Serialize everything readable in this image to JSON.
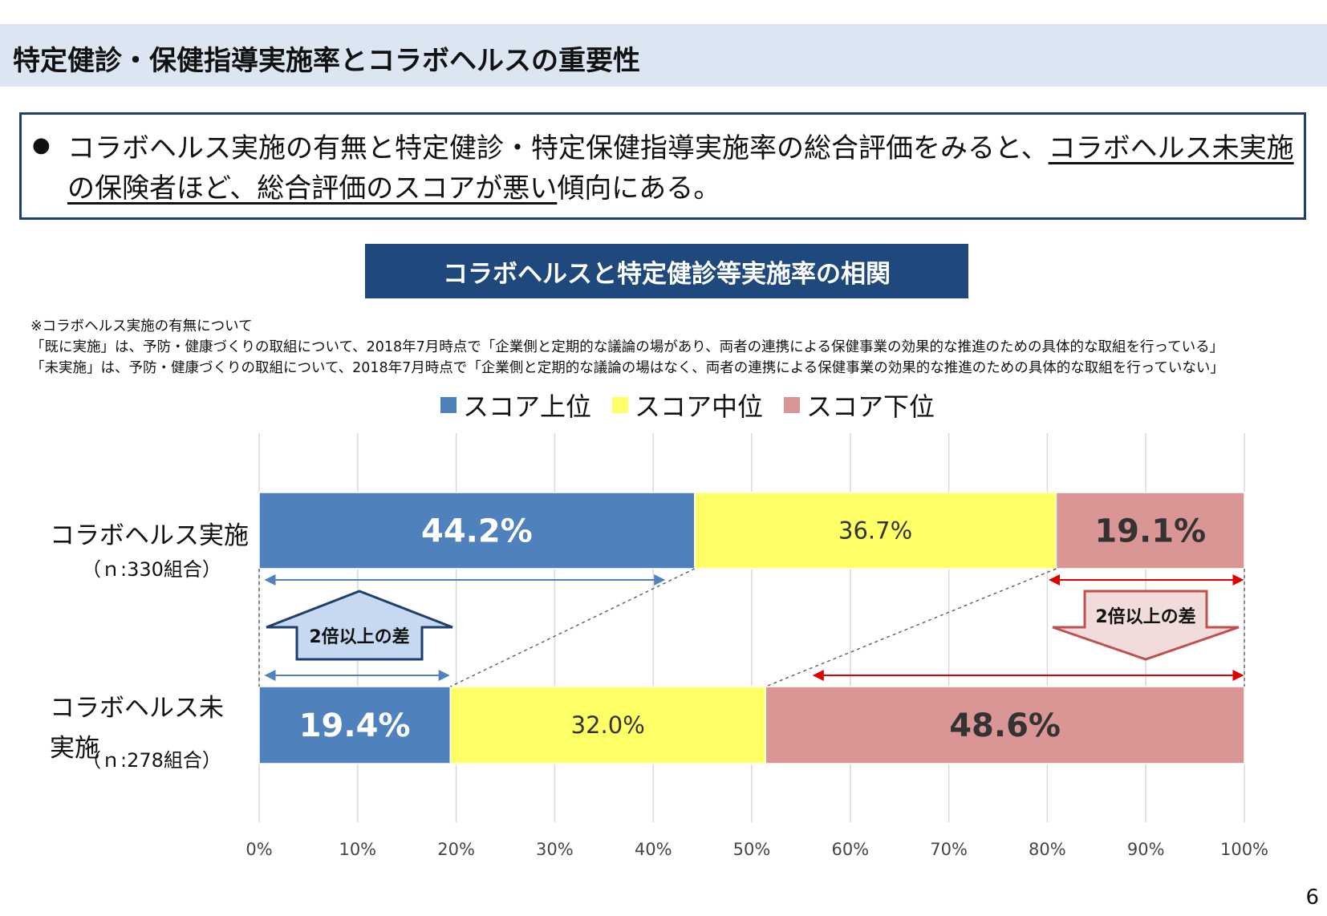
{
  "header": {
    "title": "特定健診・保健指導実施率とコラボヘルスの重要性"
  },
  "summary": {
    "bullet": "●",
    "text_plain": "コラボヘルス実施の有無と特定健診・特定保健指導実施率の総合評価をみると、",
    "text_underlined": "コラボヘルス未実施の保険者ほど、総合評価のスコアが悪い",
    "text_end": "傾向にある。"
  },
  "chart_banner": "コラボヘルスと特定健診等実施率の相関",
  "notes": [
    "※コラボヘルス実施の有無について",
    "「既に実施」は、予防・健康づくりの取組について、2018年7月時点で「企業側と定期的な議論の場があり、両者の連携による保健事業の効果的な推進のための具体的な取組を行っている」",
    "「未実施」は、予防・健康づくりの取組について、2018年7月時点で「企業側と定期的な議論の場はなく、両者の連携による保健事業の効果的な推進のための具体的な取組を行っていない」"
  ],
  "categories_detail": [
    {
      "label": "コラボヘルス実施",
      "n": "（ｎ:330組合）"
    },
    {
      "label": "コラボヘルス未実施",
      "n": "（ｎ:278組合）"
    }
  ],
  "annotations": {
    "up_arrow": "2倍以上の差",
    "down_arrow": "2倍以上の差"
  },
  "colors": {
    "top": "#4f81bd",
    "mid": "#ffff66",
    "low": "#d99694",
    "banner": "#1f497d",
    "border": "#1f3f6e",
    "header_band": "#dce6f2",
    "arrow_blue": "#4f81bd",
    "arrow_red": "#e00000",
    "up_arrow_fill": "#c6d9f1",
    "up_arrow_stroke": "#1f3f6e",
    "down_arrow_fill": "#f2dcdb",
    "down_arrow_stroke": "#c0504d"
  },
  "chart_data": {
    "type": "bar",
    "orientation": "horizontal",
    "stacked": "percent",
    "categories": [
      "コラボヘルス実施",
      "コラボヘルス未実施"
    ],
    "series": [
      {
        "name": "スコア上位",
        "values": [
          44.2,
          19.4
        ],
        "labels": [
          "44.2%",
          "19.4%"
        ]
      },
      {
        "name": "スコア中位",
        "values": [
          36.7,
          32.0
        ],
        "labels": [
          "36.7%",
          "32.0%"
        ]
      },
      {
        "name": "スコア下位",
        "values": [
          19.1,
          48.6
        ],
        "labels": [
          "19.1%",
          "48.6%"
        ]
      }
    ],
    "xlim": [
      0,
      100
    ],
    "xticks": [
      "0%",
      "10%",
      "20%",
      "30%",
      "40%",
      "50%",
      "60%",
      "70%",
      "80%",
      "90%",
      "100%"
    ],
    "grid": "vertical",
    "legend": "top-center"
  },
  "page_number": "6"
}
